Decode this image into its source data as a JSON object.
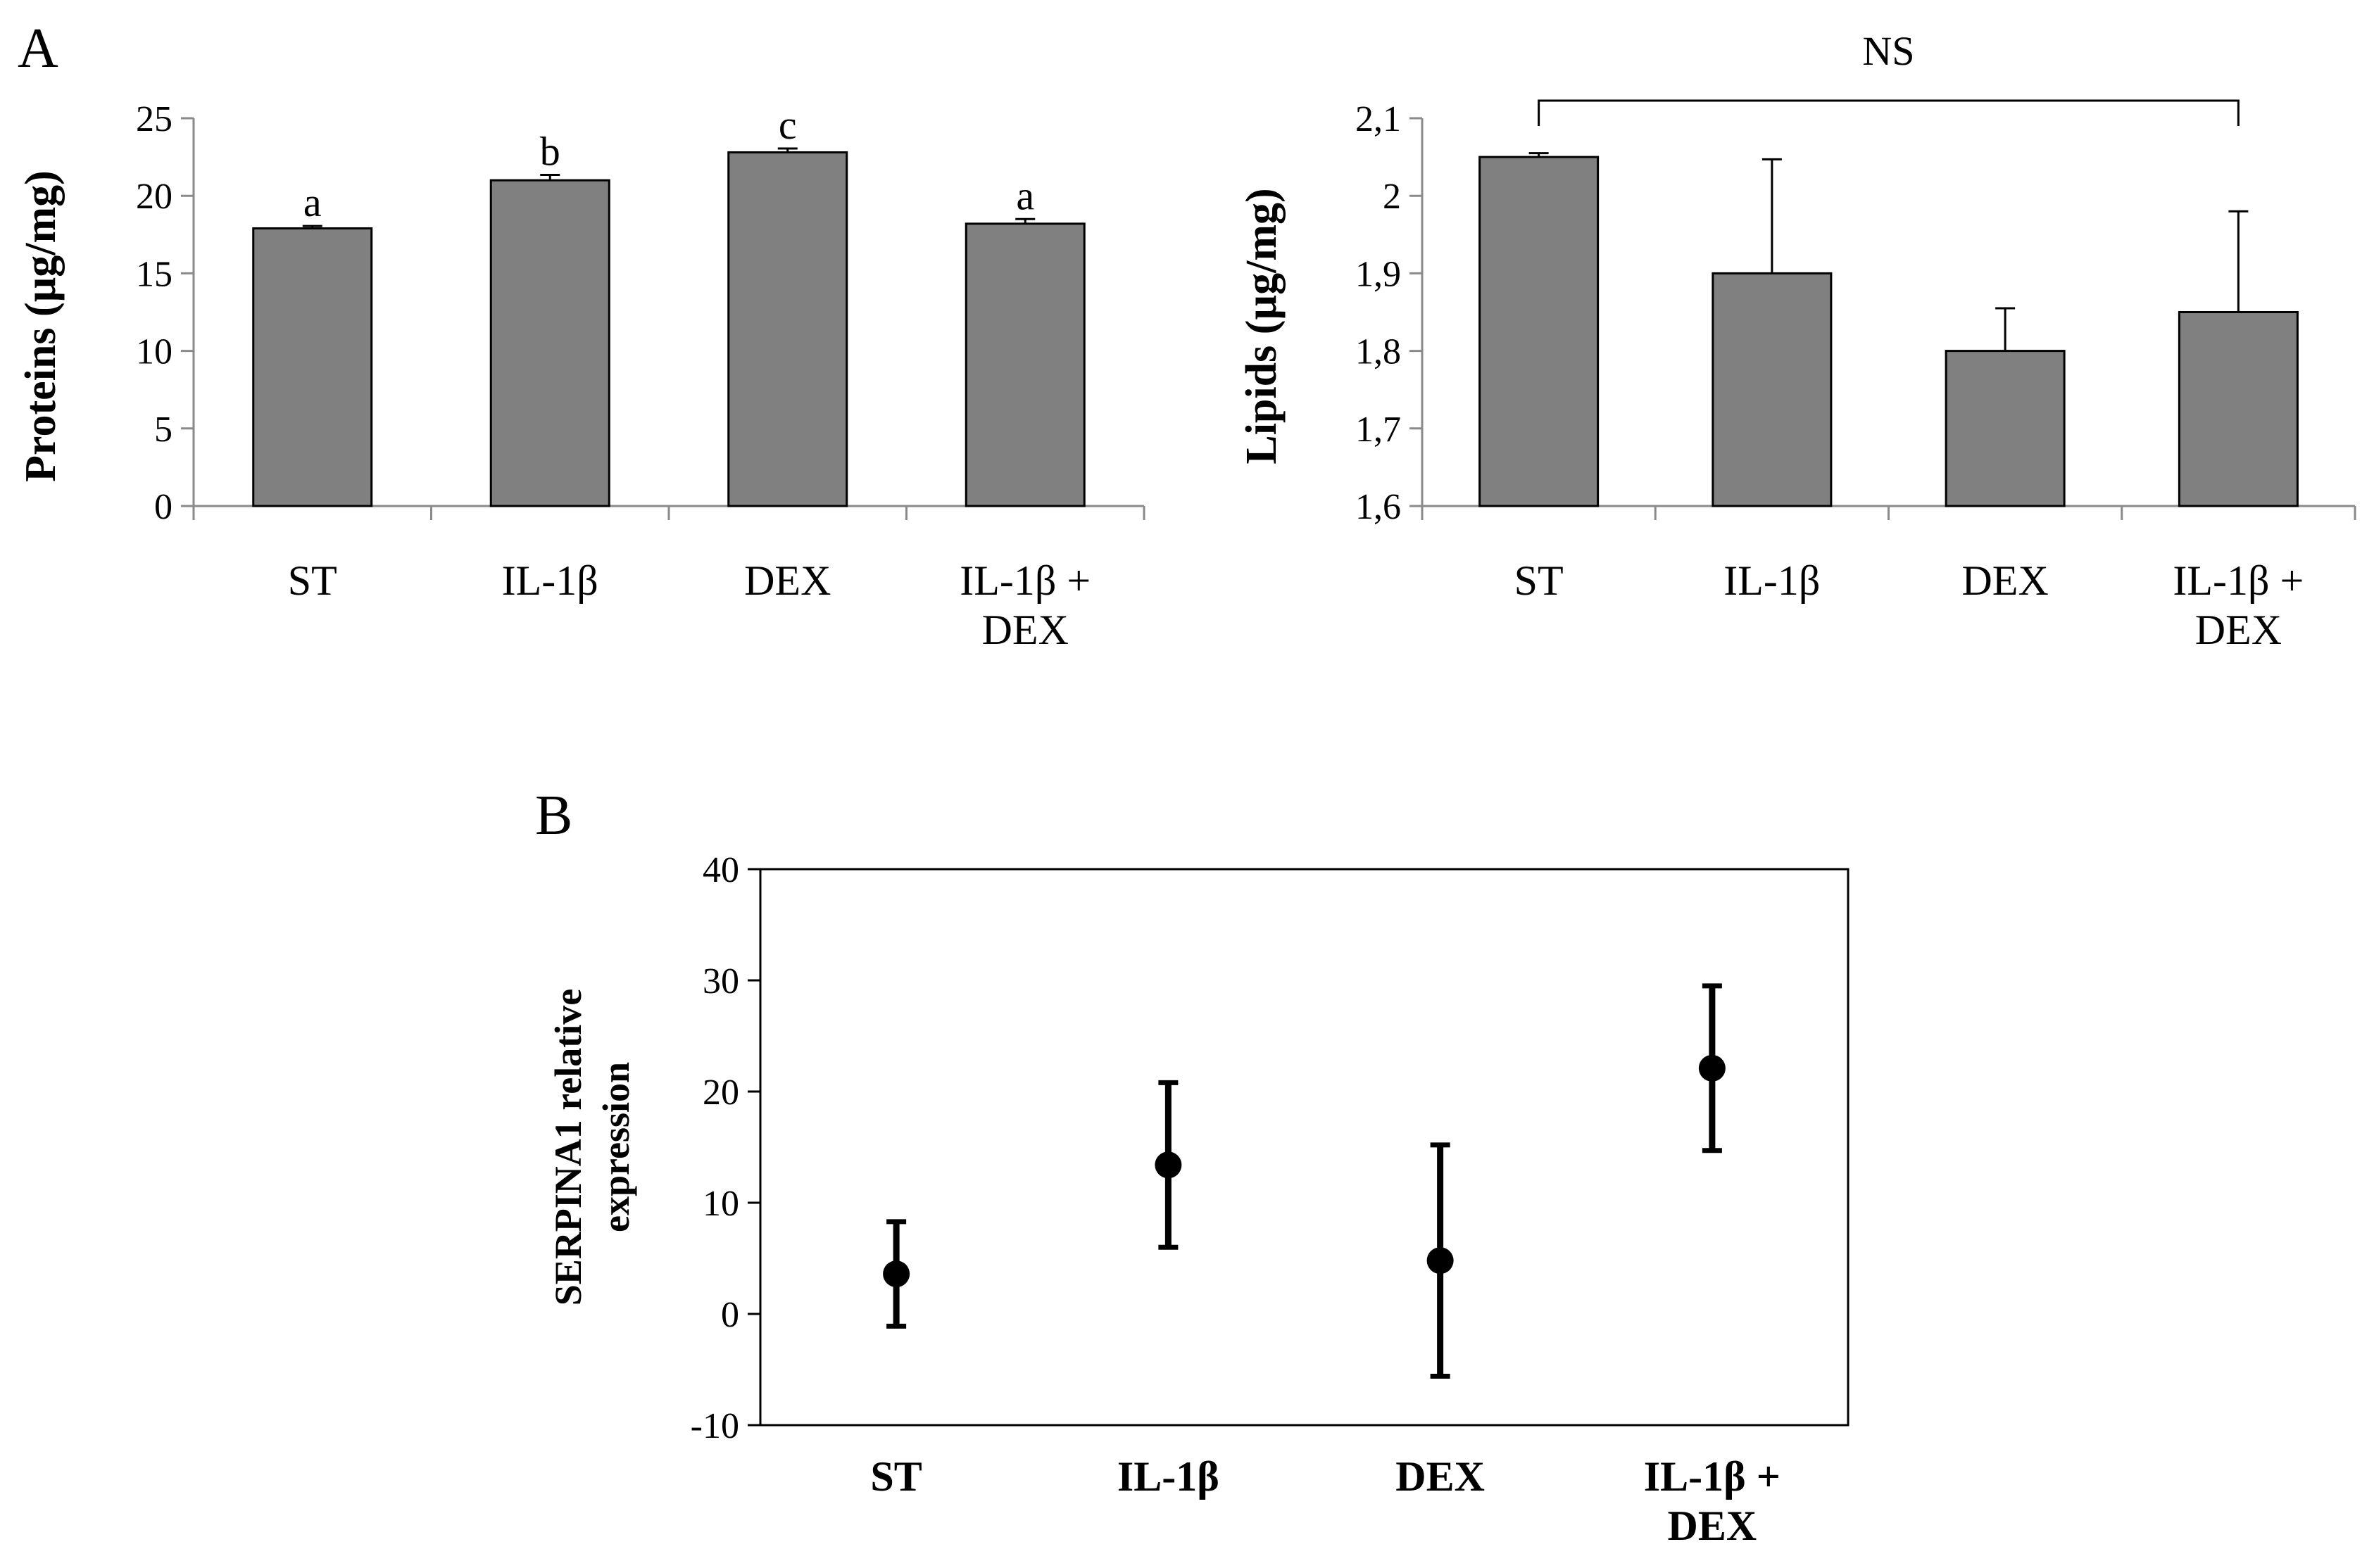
{
  "chart_data": [
    {
      "panel": "A",
      "type": "bar",
      "title": "",
      "xlabel": "",
      "ylabel": "Proteins (µg/mg)",
      "ylim": [
        0,
        25
      ],
      "yticks": [
        0,
        5,
        10,
        15,
        20,
        25
      ],
      "ytick_labels": [
        "0",
        "5",
        "10",
        "15",
        "20",
        "25"
      ],
      "categories": [
        [
          "ST"
        ],
        [
          "IL-1β"
        ],
        [
          "DEX"
        ],
        [
          "IL-1β +",
          "DEX"
        ]
      ],
      "values": [
        17.9,
        21.0,
        22.8,
        18.2
      ],
      "errors": [
        0.15,
        0.35,
        0.25,
        0.3
      ],
      "annotations": [
        "a",
        "b",
        "c",
        "a"
      ],
      "bar_color": "#808080",
      "grid": false
    },
    {
      "panel": "A-right",
      "type": "bar",
      "title": "",
      "xlabel": "",
      "ylabel": "Lipids (µg/mg)",
      "ylim": [
        1.6,
        2.1
      ],
      "yticks": [
        1.6,
        1.7,
        1.8,
        1.9,
        2.0,
        2.1
      ],
      "ytick_labels": [
        "1,6",
        "1,7",
        "1,8",
        "1,9",
        "2",
        "2,1"
      ],
      "categories": [
        [
          "ST"
        ],
        [
          "IL-1β"
        ],
        [
          "DEX"
        ],
        [
          "IL-1β +",
          "DEX"
        ]
      ],
      "values": [
        2.05,
        1.9,
        1.8,
        1.85
      ],
      "errors": [
        0.005,
        0.147,
        0.055,
        0.13
      ],
      "bracket_label": "NS",
      "bar_color": "#808080",
      "grid": false
    },
    {
      "panel": "B",
      "type": "scatter",
      "title": "",
      "xlabel": "",
      "ylabel": [
        "SERPINA1 relative",
        "expression"
      ],
      "ylim": [
        -10,
        40
      ],
      "yticks": [
        -10,
        0,
        10,
        20,
        30,
        40
      ],
      "ytick_labels": [
        "-10",
        "0",
        "10",
        "20",
        "30",
        "40"
      ],
      "categories": [
        [
          "ST"
        ],
        [
          "IL-1β"
        ],
        [
          "DEX"
        ],
        [
          "IL-1β +",
          "DEX"
        ]
      ],
      "values": [
        3.6,
        13.4,
        4.8,
        22.1
      ],
      "errors": [
        4.7,
        7.4,
        10.4,
        7.4
      ],
      "marker_color": "#000000",
      "grid": false
    }
  ],
  "panel_labels": {
    "a": "A",
    "b": "B"
  }
}
